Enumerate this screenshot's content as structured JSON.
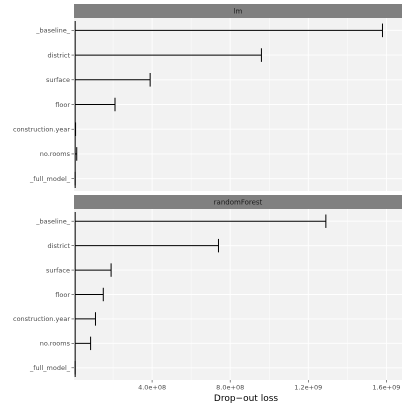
{
  "chart_data": {
    "type": "bar",
    "xlabel": "Drop−out loss",
    "x_ticks": [
      "4.0e+08",
      "8.0e+08",
      "1.2e+09",
      "1.6e+09"
    ],
    "x_tick_values": [
      400000000,
      800000000,
      1200000000,
      1600000000
    ],
    "xlim": [
      0,
      1680000000
    ],
    "baseline": 6000000,
    "categories": [
      "_baseline_",
      "district",
      "surface",
      "floor",
      "construction.year",
      "no.rooms",
      "_full_model_"
    ],
    "panels": [
      {
        "title": "lm",
        "values": [
          1580000000,
          960000000,
          390000000,
          210000000,
          8000000,
          14000000,
          6000000
        ]
      },
      {
        "title": "randomForest",
        "values": [
          1290000000,
          740000000,
          190000000,
          150000000,
          110000000,
          85000000,
          6000000
        ]
      }
    ],
    "colors": {
      "panel_bg": "#f2f2f2",
      "strip_bg": "#808080",
      "grid": "#ffffff",
      "bar": "#000000"
    }
  }
}
